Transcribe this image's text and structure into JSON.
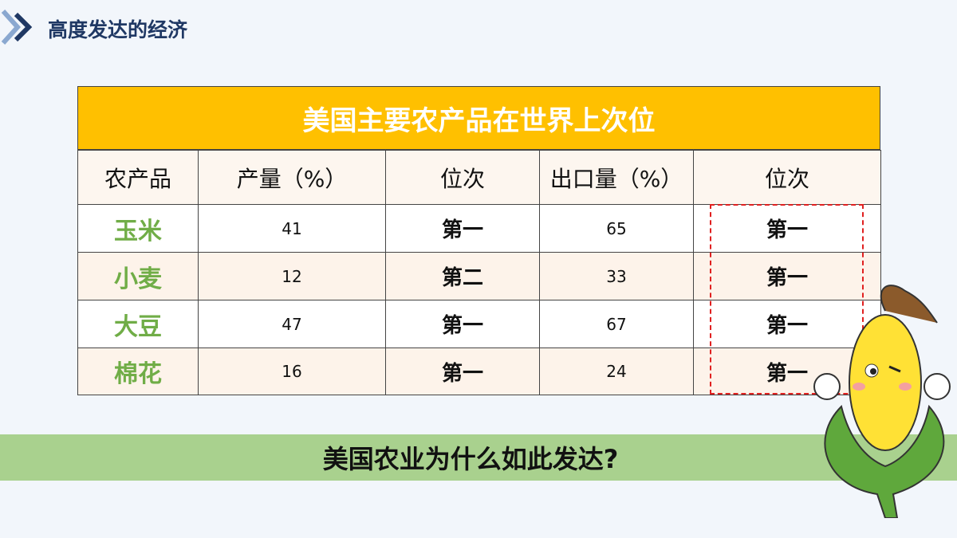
{
  "header": {
    "title": "高度发达的经济"
  },
  "table": {
    "title": "美国主要农产品在世界上次位",
    "columns": [
      "农产品",
      "产量（%）",
      "位次",
      "出口量（%）",
      "位次"
    ],
    "rows": [
      [
        "玉米",
        41,
        "第一",
        65,
        "第一"
      ],
      [
        "小麦",
        12,
        "第二",
        33,
        "第一"
      ],
      [
        "大豆",
        47,
        "第一",
        67,
        "第一"
      ],
      [
        "棉花",
        16,
        "第一",
        24,
        "第一"
      ]
    ]
  },
  "question": "美国农业为什么如此发达?"
}
